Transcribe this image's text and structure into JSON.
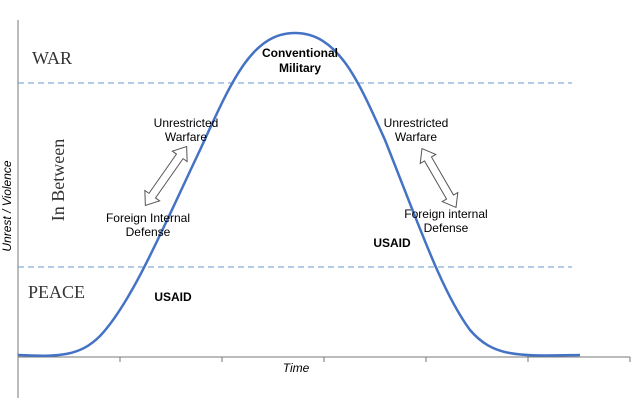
{
  "zones": {
    "war": "WAR",
    "in_between": "In Between",
    "peace": "PEACE"
  },
  "axes": {
    "x_label": "Time",
    "y_label": "Unrest / Violence"
  },
  "labels": {
    "conventional_military": [
      "Conventional",
      "Military"
    ],
    "left_unrestricted_warfare": [
      "Unrestricted",
      "Warfare"
    ],
    "left_foreign_internal_defense": [
      "Foreign Internal",
      "Defense"
    ],
    "left_usaid": "USAID",
    "right_unrestricted_warfare": [
      "Unrestricted",
      "Warfare"
    ],
    "right_foreign_internal_defense": [
      "Foreign internal",
      "Defense"
    ],
    "right_usaid": "USAID"
  }
}
